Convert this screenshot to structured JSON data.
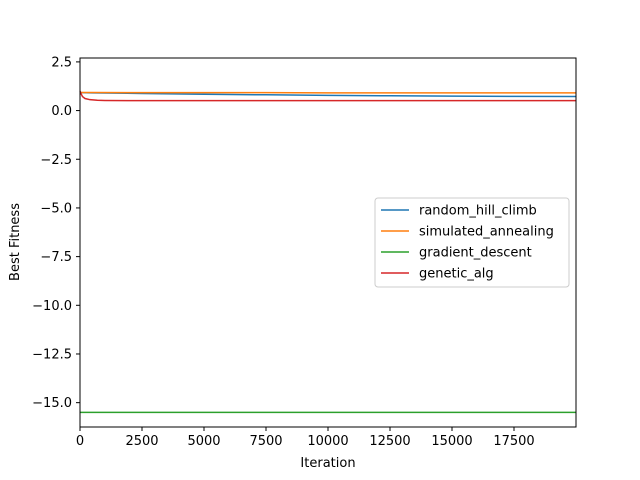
{
  "chart_data": {
    "type": "line",
    "title": "",
    "xlabel": "Iteration",
    "ylabel": "Best Fitness",
    "xlim": [
      0,
      20000
    ],
    "ylim": [
      -16.25,
      2.7
    ],
    "xticks": [
      0,
      2500,
      5000,
      7500,
      10000,
      12500,
      15000,
      17500
    ],
    "xtick_labels": [
      "0",
      "2500",
      "5000",
      "7500",
      "10000",
      "12500",
      "15000",
      "17500"
    ],
    "yticks": [
      2.5,
      0.0,
      -2.5,
      -5.0,
      -7.5,
      -10.0,
      -12.5,
      -15.0
    ],
    "ytick_labels": [
      "2.5",
      "0.0",
      "−2.5",
      "−5.0",
      "−7.5",
      "−10.0",
      "−12.5",
      "−15.0"
    ],
    "grid": false,
    "legend_position": "center-right",
    "series": [
      {
        "name": "random_hill_climb",
        "color": "#1f77b4",
        "x": [
          0,
          500,
          2500,
          5000,
          7500,
          10000,
          12500,
          15000,
          17500,
          20000
        ],
        "y": [
          0.92,
          0.91,
          0.88,
          0.84,
          0.81,
          0.78,
          0.76,
          0.74,
          0.73,
          0.72
        ]
      },
      {
        "name": "simulated_annealing",
        "color": "#ff7f0e",
        "x": [
          0,
          500,
          2500,
          5000,
          7500,
          10000,
          12500,
          15000,
          17500,
          20000
        ],
        "y": [
          0.93,
          0.93,
          0.92,
          0.92,
          0.92,
          0.91,
          0.91,
          0.91,
          0.91,
          0.91
        ]
      },
      {
        "name": "gradient_descent",
        "color": "#2ca02c",
        "x": [
          0,
          20000
        ],
        "y": [
          -15.5,
          -15.5
        ]
      },
      {
        "name": "genetic_alg",
        "color": "#d62728",
        "x": [
          0,
          50,
          100,
          200,
          400,
          700,
          1000,
          2000,
          5000,
          10000,
          20000
        ],
        "y": [
          1.0,
          0.85,
          0.72,
          0.62,
          0.56,
          0.53,
          0.52,
          0.51,
          0.51,
          0.51,
          0.51
        ]
      }
    ]
  }
}
